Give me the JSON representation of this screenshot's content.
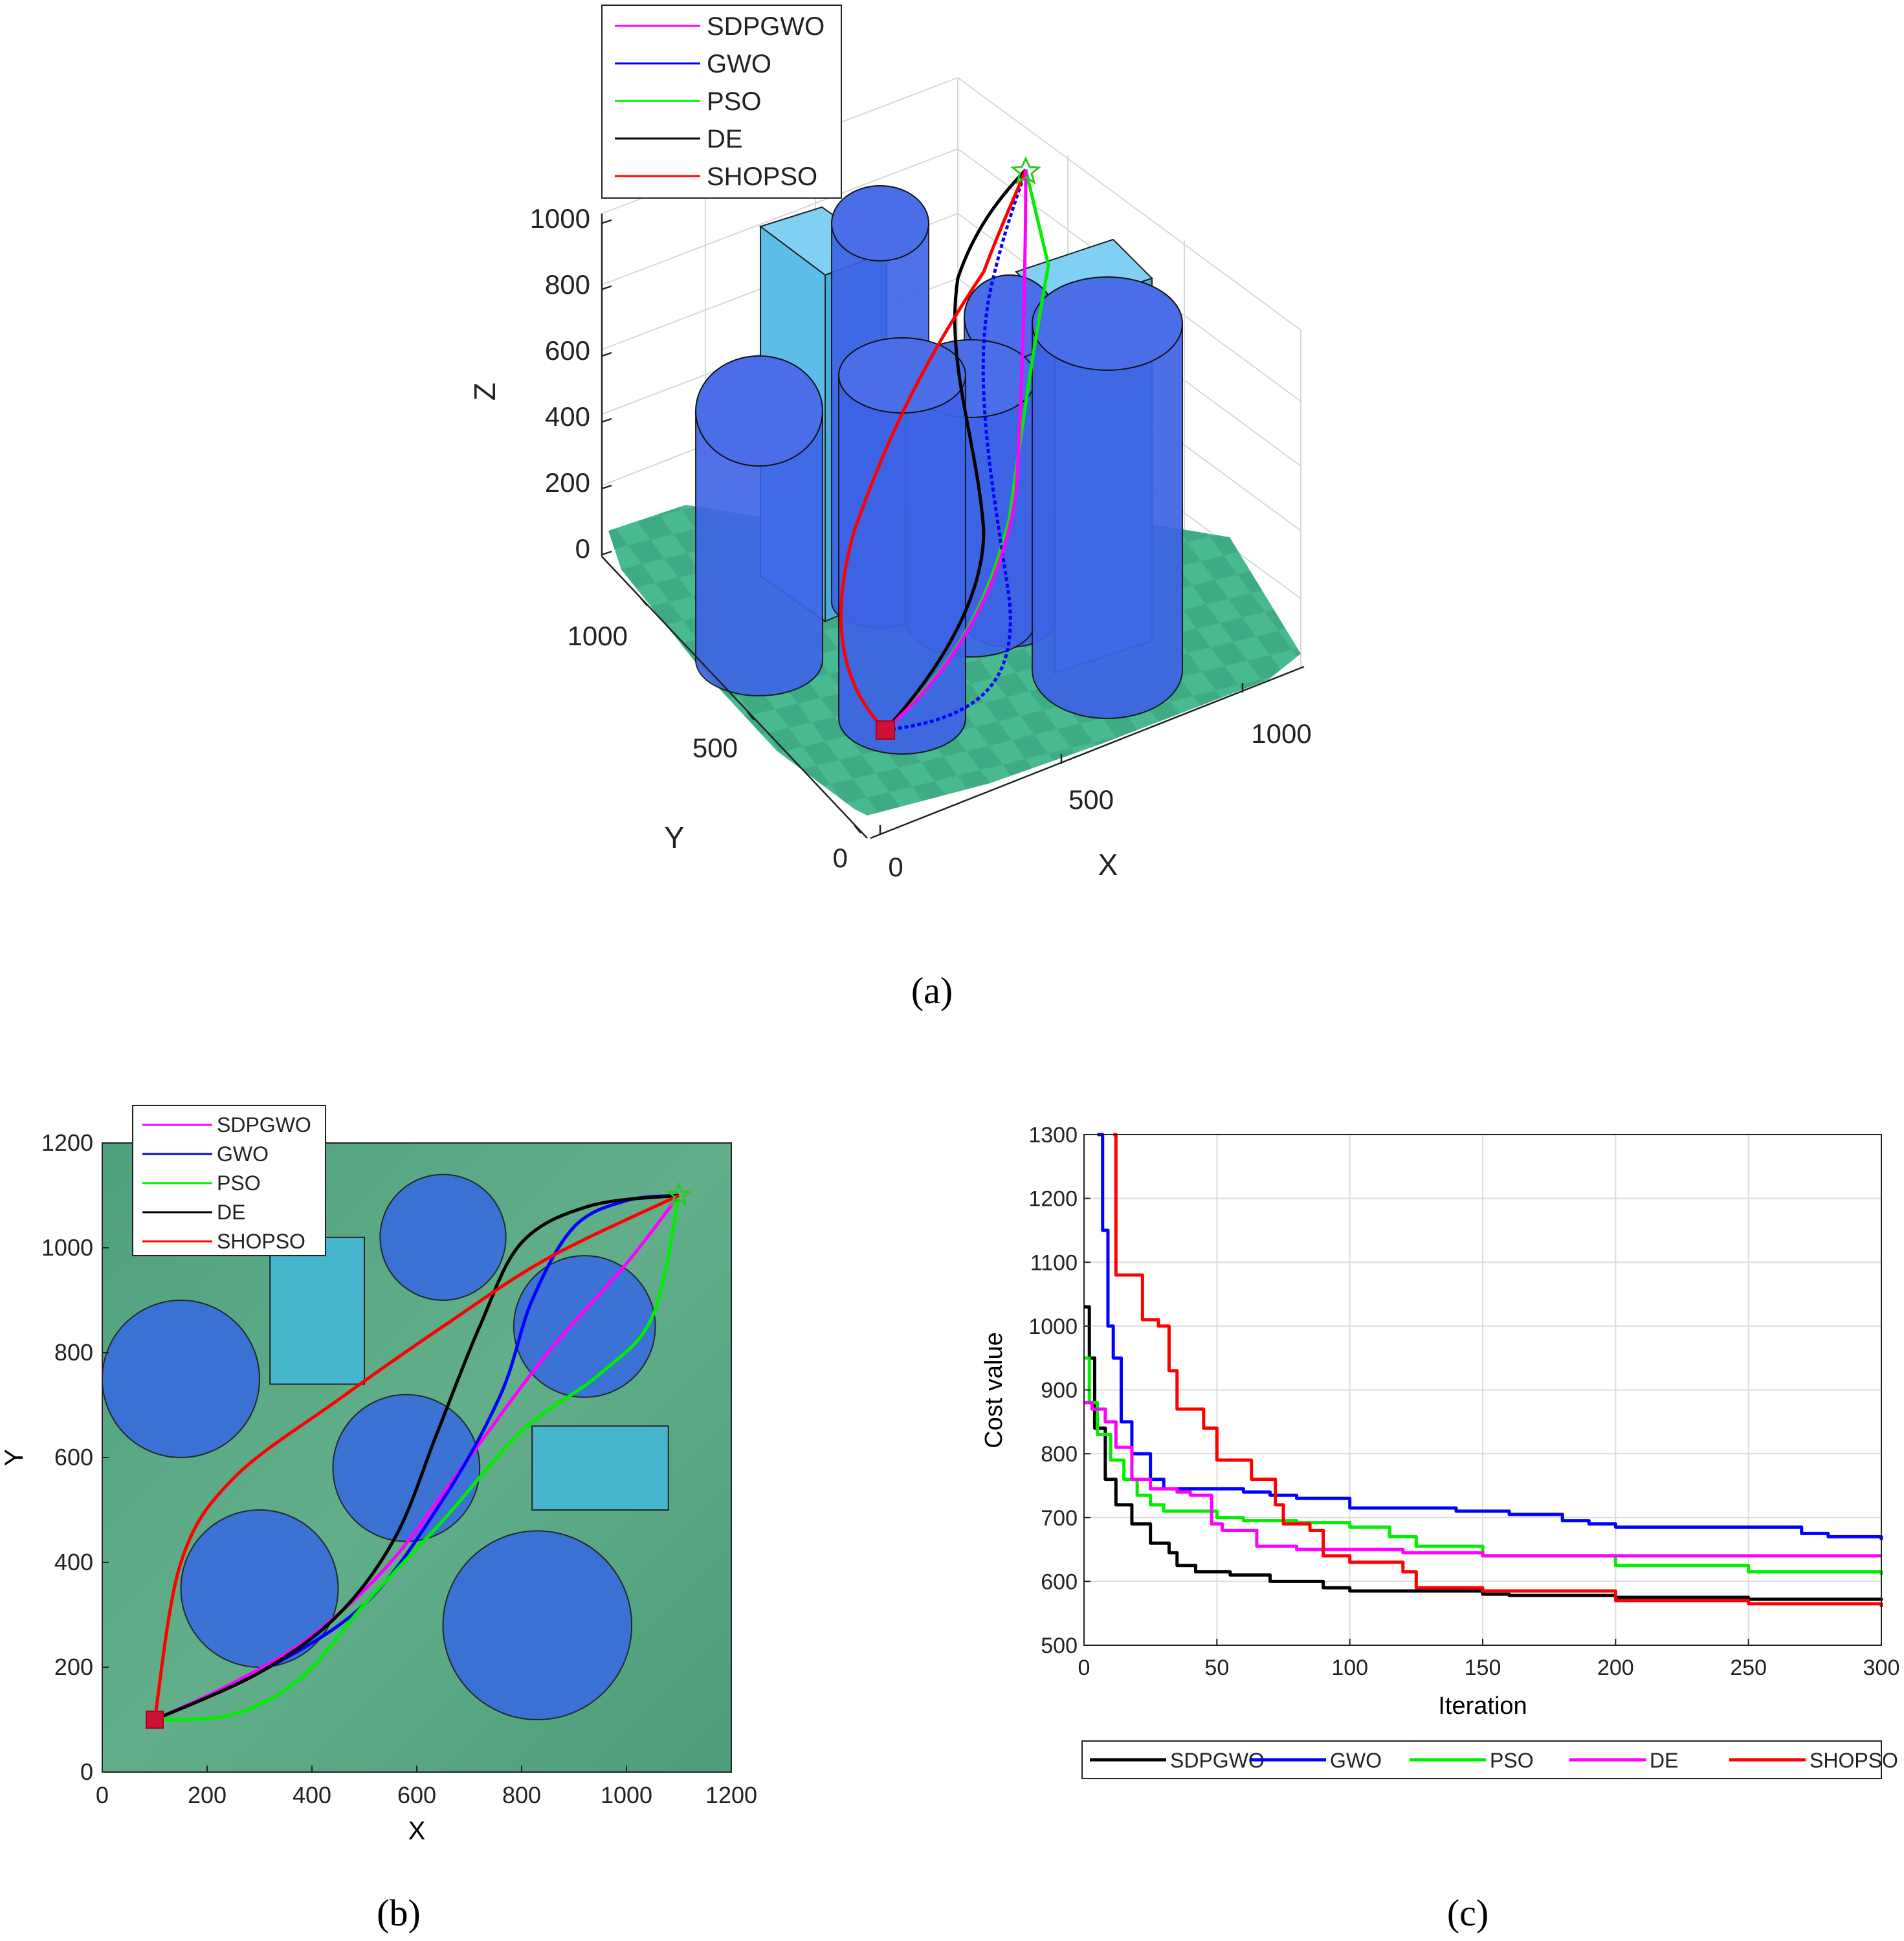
{
  "panels": {
    "a": {
      "caption": "(a)",
      "legend": [
        "SDPGWO",
        "GWO",
        "PSO",
        "DE",
        "SHOPSO"
      ],
      "z_label": "Z",
      "x_label": "X",
      "y_label": "Y",
      "z_ticks": [
        "1000",
        "800",
        "600",
        "400",
        "200",
        "0"
      ],
      "x_ticks": [
        "0",
        "500",
        "1000"
      ],
      "y_ticks": [
        "1000",
        "500",
        "0"
      ]
    },
    "b": {
      "caption": "(b)",
      "legend": [
        "SDPGWO",
        "GWO",
        "PSO",
        "DE",
        "SHOPSO"
      ],
      "x_label": "X",
      "y_label": "Y",
      "x_ticks": [
        "0",
        "200",
        "400",
        "600",
        "800",
        "1000",
        "1200"
      ],
      "y_ticks": [
        "0",
        "200",
        "400",
        "600",
        "800",
        "1000",
        "1200"
      ]
    },
    "c": {
      "caption": "(c)",
      "x_label": "Iteration",
      "y_label": "Cost value"
    }
  },
  "colors": {
    "SDPGWO_a": "#ff00ff",
    "GWO_a": "#0000ff",
    "PSO_a": "#00ee00",
    "DE_a": "#000000",
    "SHOPSO_a": "#ff0000",
    "terrain": "#3fb58a",
    "cylinder": "#3d63e6",
    "box": "#5bbde8",
    "map_bg": "#5aa885"
  },
  "chart_data": [
    {
      "type": "3d-surface-paths",
      "title": "",
      "xlim": [
        0,
        1200
      ],
      "ylim": [
        0,
        1200
      ],
      "zlim": [
        0,
        1000
      ],
      "start": [
        100,
        100
      ],
      "goal": [
        1100,
        1100
      ],
      "series": [
        {
          "name": "SDPGWO",
          "color": "#ff00ff"
        },
        {
          "name": "GWO",
          "color": "#0000ff"
        },
        {
          "name": "PSO",
          "color": "#00ee00"
        },
        {
          "name": "DE",
          "color": "#000000"
        },
        {
          "name": "SHOPSO",
          "color": "#ff0000"
        }
      ]
    },
    {
      "type": "line",
      "title": "",
      "xlabel": "X",
      "ylabel": "Y",
      "xlim": [
        0,
        1200
      ],
      "ylim": [
        0,
        1200
      ],
      "obstacles": {
        "circles": [
          {
            "cx": 150,
            "cy": 750,
            "r": 150
          },
          {
            "cx": 650,
            "cy": 1020,
            "r": 120
          },
          {
            "cx": 300,
            "cy": 350,
            "r": 150
          },
          {
            "cx": 580,
            "cy": 580,
            "r": 140
          },
          {
            "cx": 920,
            "cy": 850,
            "r": 135
          },
          {
            "cx": 830,
            "cy": 280,
            "r": 180
          }
        ],
        "rects": [
          {
            "x0": 320,
            "y0": 740,
            "x1": 500,
            "y1": 1020
          },
          {
            "x0": 820,
            "y0": 500,
            "x1": 1080,
            "y1": 660
          }
        ]
      },
      "start": [
        100,
        100
      ],
      "goal": [
        1100,
        1100
      ],
      "series": [
        {
          "name": "SDPGWO",
          "color": "#ff00ff",
          "points": [
            [
              100,
              100
            ],
            [
              250,
              170
            ],
            [
              400,
              260
            ],
            [
              550,
              400
            ],
            [
              700,
              600
            ],
            [
              850,
              800
            ],
            [
              1000,
              970
            ],
            [
              1100,
              1100
            ]
          ]
        },
        {
          "name": "GWO",
          "color": "#0000ff",
          "points": [
            [
              100,
              100
            ],
            [
              300,
              190
            ],
            [
              500,
              320
            ],
            [
              650,
              520
            ],
            [
              760,
              720
            ],
            [
              820,
              900
            ],
            [
              900,
              1040
            ],
            [
              1000,
              1090
            ],
            [
              1100,
              1100
            ]
          ]
        },
        {
          "name": "PSO",
          "color": "#00ee00",
          "points": [
            [
              100,
              100
            ],
            [
              250,
              110
            ],
            [
              380,
              180
            ],
            [
              500,
              320
            ],
            [
              650,
              480
            ],
            [
              800,
              650
            ],
            [
              950,
              760
            ],
            [
              1050,
              870
            ],
            [
              1100,
              1100
            ]
          ]
        },
        {
          "name": "DE",
          "color": "#000000",
          "points": [
            [
              100,
              100
            ],
            [
              300,
              190
            ],
            [
              450,
              300
            ],
            [
              560,
              450
            ],
            [
              640,
              650
            ],
            [
              720,
              850
            ],
            [
              800,
              1010
            ],
            [
              930,
              1080
            ],
            [
              1100,
              1100
            ]
          ]
        },
        {
          "name": "SHOPSO",
          "color": "#ff0000",
          "points": [
            [
              100,
              100
            ],
            [
              150,
              400
            ],
            [
              250,
              560
            ],
            [
              450,
              710
            ],
            [
              650,
              850
            ],
            [
              850,
              980
            ],
            [
              1100,
              1100
            ]
          ]
        }
      ]
    },
    {
      "type": "line",
      "title": "",
      "xlabel": "Iteration",
      "ylabel": "Cost value",
      "xlim": [
        0,
        300
      ],
      "ylim": [
        500,
        1300
      ],
      "xticks": [
        "0",
        "50",
        "100",
        "150",
        "200",
        "250",
        "300"
      ],
      "yticks": [
        "500",
        "600",
        "700",
        "800",
        "900",
        "1000",
        "1100",
        "1200",
        "1300"
      ],
      "grid": true,
      "legend": "bottom",
      "series": [
        {
          "name": "SDPGWO",
          "color": "#000000",
          "points": [
            [
              0,
              1030
            ],
            [
              2,
              950
            ],
            [
              4,
              840
            ],
            [
              8,
              760
            ],
            [
              12,
              720
            ],
            [
              18,
              690
            ],
            [
              25,
              660
            ],
            [
              32,
              645
            ],
            [
              35,
              625
            ],
            [
              42,
              615
            ],
            [
              55,
              610
            ],
            [
              70,
              600
            ],
            [
              90,
              590
            ],
            [
              100,
              585
            ],
            [
              150,
              580
            ],
            [
              160,
              578
            ],
            [
              200,
              575
            ],
            [
              250,
              572
            ],
            [
              300,
              570
            ]
          ]
        },
        {
          "name": "GWO",
          "color": "#0000ff",
          "points": [
            [
              5,
              1300
            ],
            [
              7,
              1150
            ],
            [
              9,
              1000
            ],
            [
              11,
              950
            ],
            [
              14,
              850
            ],
            [
              18,
              800
            ],
            [
              25,
              760
            ],
            [
              30,
              745
            ],
            [
              60,
              740
            ],
            [
              70,
              735
            ],
            [
              80,
              730
            ],
            [
              90,
              730
            ],
            [
              100,
              715
            ],
            [
              140,
              710
            ],
            [
              160,
              705
            ],
            [
              180,
              695
            ],
            [
              190,
              690
            ],
            [
              200,
              685
            ],
            [
              250,
              685
            ],
            [
              270,
              675
            ],
            [
              280,
              670
            ],
            [
              300,
              665
            ]
          ]
        },
        {
          "name": "PSO",
          "color": "#00ee00",
          "points": [
            [
              0,
              950
            ],
            [
              2,
              880
            ],
            [
              5,
              830
            ],
            [
              10,
              790
            ],
            [
              15,
              760
            ],
            [
              20,
              735
            ],
            [
              25,
              720
            ],
            [
              30,
              710
            ],
            [
              50,
              700
            ],
            [
              60,
              695
            ],
            [
              80,
              692
            ],
            [
              100,
              685
            ],
            [
              115,
              670
            ],
            [
              125,
              655
            ],
            [
              150,
              640
            ],
            [
              200,
              625
            ],
            [
              250,
              615
            ],
            [
              300,
              610
            ]
          ]
        },
        {
          "name": "DE",
          "color": "#ff00ff",
          "points": [
            [
              0,
              880
            ],
            [
              3,
              870
            ],
            [
              8,
              850
            ],
            [
              12,
              810
            ],
            [
              18,
              760
            ],
            [
              25,
              745
            ],
            [
              35,
              740
            ],
            [
              40,
              735
            ],
            [
              48,
              690
            ],
            [
              52,
              680
            ],
            [
              65,
              655
            ],
            [
              80,
              650
            ],
            [
              120,
              645
            ],
            [
              150,
              640
            ],
            [
              300,
              640
            ]
          ]
        },
        {
          "name": "SHOPSO",
          "color": "#ff0000",
          "points": [
            [
              11,
              1300
            ],
            [
              12,
              1080
            ],
            [
              20,
              1080
            ],
            [
              22,
              1010
            ],
            [
              28,
              1000
            ],
            [
              32,
              930
            ],
            [
              35,
              870
            ],
            [
              43,
              870
            ],
            [
              45,
              840
            ],
            [
              50,
              790
            ],
            [
              60,
              790
            ],
            [
              63,
              760
            ],
            [
              68,
              760
            ],
            [
              72,
              720
            ],
            [
              75,
              690
            ],
            [
              85,
              680
            ],
            [
              90,
              640
            ],
            [
              100,
              630
            ],
            [
              120,
              615
            ],
            [
              125,
              590
            ],
            [
              150,
              585
            ],
            [
              200,
              570
            ],
            [
              250,
              565
            ],
            [
              300,
              560
            ]
          ]
        }
      ]
    }
  ]
}
